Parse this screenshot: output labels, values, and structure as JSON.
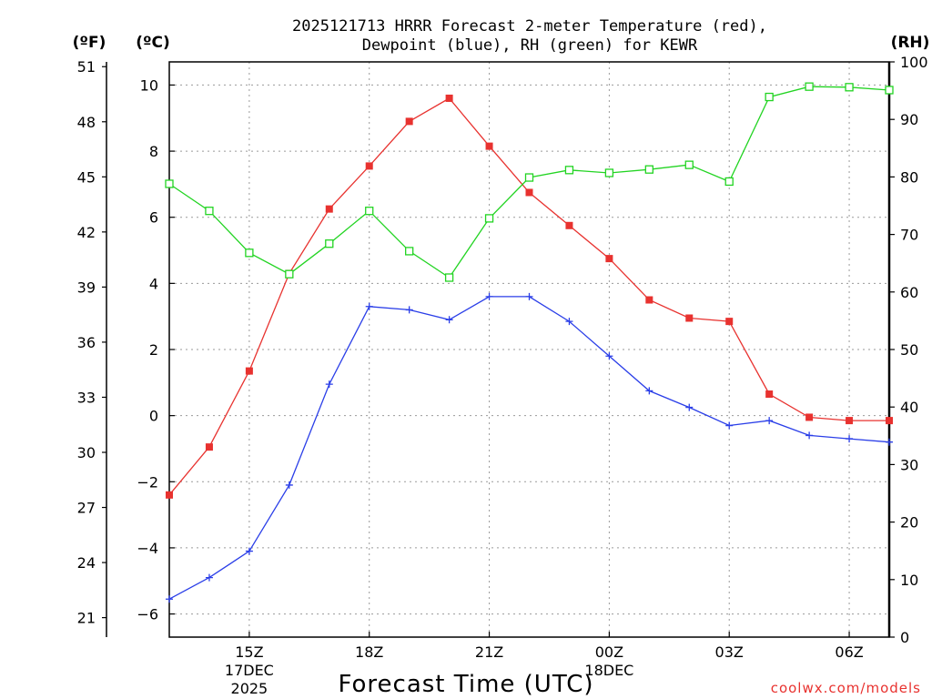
{
  "chart_data": {
    "type": "line",
    "title_line1": "2025121713 HRRR Forecast 2-meter Temperature (red),",
    "title_line2": "Dewpoint (blue), RH (green) for KEWR",
    "xlabel": "Forecast Time (UTC)",
    "credit": "coolwx.com/models",
    "units": {
      "fahrenheit": "(ºF)",
      "celsius": "(ºC)",
      "rh": "(RH)"
    },
    "hours": [
      13,
      14,
      15,
      16,
      17,
      18,
      19,
      20,
      21,
      22,
      23,
      24,
      25,
      26,
      27,
      28,
      29,
      30,
      31
    ],
    "xlim": [
      13,
      31
    ],
    "x_ticks": [
      {
        "h": 15,
        "label": "15Z"
      },
      {
        "h": 18,
        "label": "18Z"
      },
      {
        "h": 21,
        "label": "21Z"
      },
      {
        "h": 24,
        "label": "00Z"
      },
      {
        "h": 27,
        "label": "03Z"
      },
      {
        "h": 30,
        "label": "06Z"
      }
    ],
    "date_labels": [
      {
        "h": 15,
        "line1": "17DEC",
        "line2": "2025"
      },
      {
        "h": 24,
        "line1": "18DEC",
        "line2": ""
      }
    ],
    "celsius_axis": {
      "ylim": [
        -6.7,
        10.7
      ],
      "ticks": [
        -6,
        -4,
        -2,
        0,
        2,
        4,
        6,
        8,
        10
      ]
    },
    "fahrenheit_ticks": [
      21,
      24,
      27,
      30,
      33,
      36,
      39,
      42,
      45,
      48,
      51
    ],
    "rh_axis": {
      "ylim": [
        0,
        100
      ],
      "ticks": [
        0,
        10,
        20,
        30,
        40,
        50,
        60,
        70,
        80,
        90,
        100
      ]
    },
    "series": [
      {
        "name": "2-meter Temperature",
        "axis": "celsius",
        "color": "#e8322f",
        "marker": "filled-square",
        "values": [
          -2.4,
          -0.95,
          1.35,
          4.3,
          6.25,
          7.55,
          8.9,
          9.6,
          8.15,
          6.75,
          5.75,
          4.75,
          3.5,
          2.95,
          2.85,
          0.65,
          -0.05,
          -0.15,
          -0.15
        ]
      },
      {
        "name": "Dewpoint",
        "axis": "celsius",
        "color": "#2a3ee8",
        "marker": "plus",
        "values": [
          -5.55,
          -4.9,
          -4.1,
          -2.1,
          0.95,
          3.3,
          3.2,
          2.9,
          3.6,
          3.6,
          2.85,
          1.8,
          0.75,
          0.25,
          -0.3,
          -0.15,
          -0.6,
          -0.7,
          -0.8
        ]
      },
      {
        "name": "RH",
        "axis": "rh",
        "color": "#22d422",
        "marker": "open-square",
        "values": [
          78.8,
          74.1,
          66.8,
          63.1,
          68.4,
          74.1,
          67.1,
          62.5,
          72.8,
          79.9,
          81.2,
          80.7,
          81.3,
          82.1,
          79.2,
          93.9,
          95.7,
          95.6,
          95.1
        ]
      }
    ]
  }
}
